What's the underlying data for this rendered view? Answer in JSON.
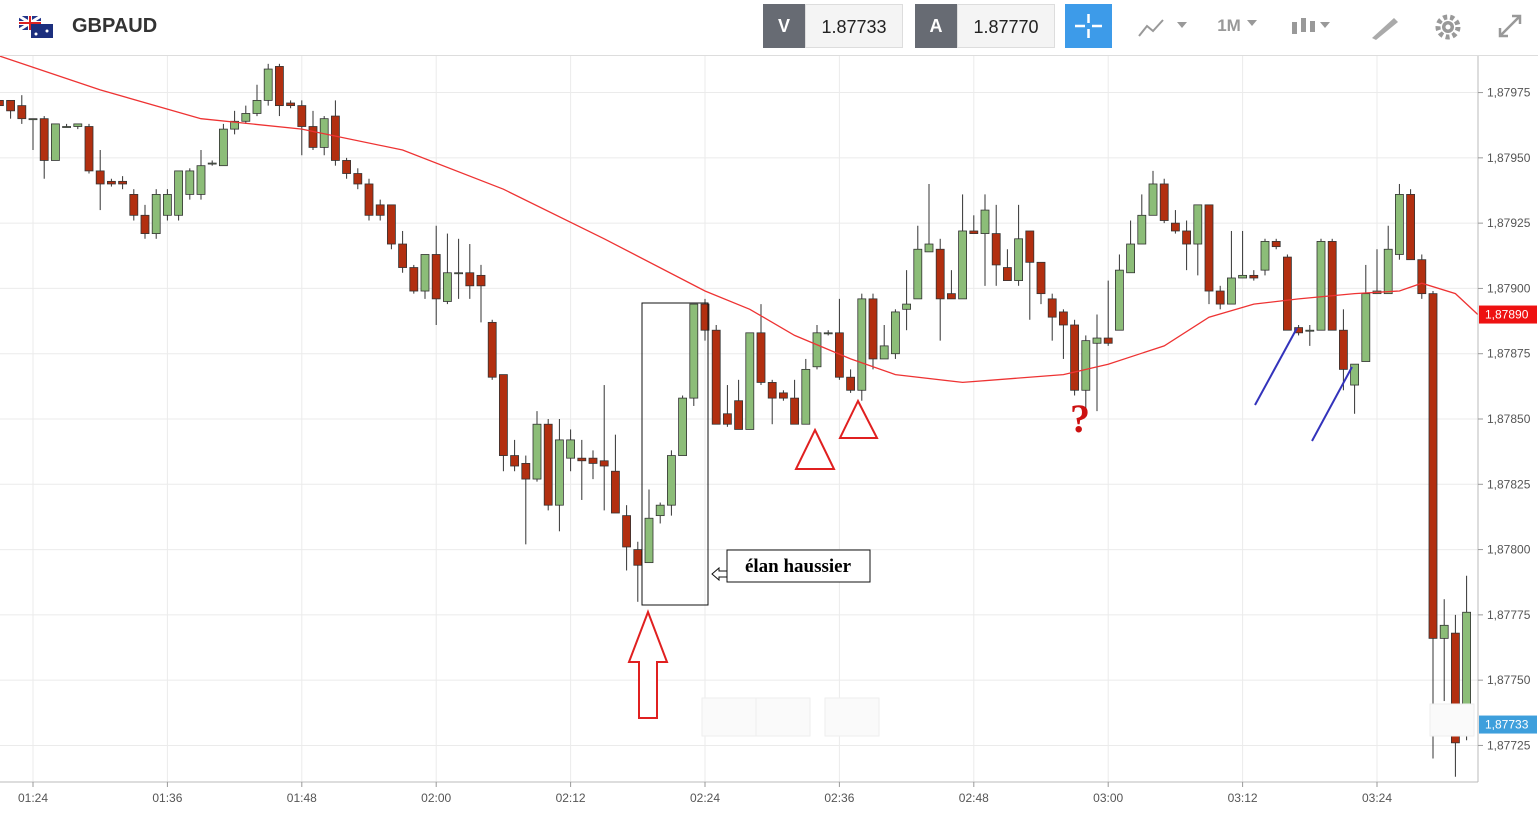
{
  "header": {
    "symbol": "GBPAUD",
    "bid_label": "V",
    "bid": "1.87733",
    "ask_label": "A",
    "ask": "1.87770",
    "timeframe": "1M"
  },
  "chart_data": {
    "type": "candlestick",
    "categories": [
      null,
      null,
      null,
      "01:24",
      null,
      null,
      null,
      null,
      null,
      null,
      null,
      null,
      null,
      null,
      null,
      "01:36",
      null,
      null,
      null,
      null,
      null,
      null,
      null,
      null,
      null,
      null,
      null,
      "01:48",
      null,
      null,
      null,
      null,
      null,
      null,
      null,
      null,
      null,
      null,
      null,
      "02:00",
      null,
      null,
      null,
      null,
      null,
      null,
      null,
      null,
      null,
      null,
      null,
      "02:12",
      null,
      null,
      null,
      null,
      null,
      null,
      null,
      null,
      null,
      null,
      null,
      "02:24",
      null,
      null,
      null,
      null,
      null,
      null,
      null,
      null,
      null,
      null,
      null,
      "02:36",
      null,
      null,
      null,
      null,
      null,
      null,
      null,
      null,
      null,
      null,
      null,
      "02:48",
      null,
      null,
      null,
      null,
      null,
      null,
      null,
      null,
      null,
      null,
      null,
      "03:00",
      null,
      null,
      null,
      null,
      null,
      null,
      null,
      null,
      null,
      null,
      null,
      "03:12",
      null,
      null,
      null,
      null,
      null,
      null,
      null,
      null,
      null,
      null,
      null,
      "03:24",
      null,
      null,
      null,
      null,
      null,
      null,
      null,
      null
    ],
    "open": [
      1.87972,
      1.87972,
      1.8797,
      1.87965,
      1.87965,
      1.87949,
      1.87962,
      1.87962,
      1.87962,
      1.87945,
      1.87941,
      1.87941,
      1.87936,
      1.87928,
      1.87921,
      1.87928,
      1.87928,
      1.87936,
      1.87936,
      1.87948,
      1.87947,
      1.87961,
      1.87964,
      1.87967,
      1.87972,
      1.87985,
      1.87971,
      1.8797,
      1.87962,
      1.87954,
      1.87966,
      1.87949,
      1.87944,
      1.8794,
      1.87932,
      1.87932,
      1.87917,
      1.87908,
      1.87899,
      1.87913,
      1.87895,
      1.87906,
      1.87906,
      1.87905,
      1.87887,
      1.87867,
      1.87836,
      1.87833,
      1.87827,
      1.87848,
      1.87817,
      1.87835,
      1.87835,
      1.87835,
      1.87834,
      1.8783,
      1.87813,
      1.878,
      1.87795,
      1.87813,
      1.87817,
      1.87836,
      1.87858,
      1.87894,
      1.87884,
      1.87852,
      1.87857,
      1.87846,
      1.87883,
      1.87864,
      1.8786,
      1.87858,
      1.87848,
      1.8787,
      1.87883,
      1.87883,
      1.87866,
      1.87861,
      1.87896,
      1.87873,
      1.87875,
      1.87892,
      1.87896,
      1.87914,
      1.87915,
      1.87898,
      1.87896,
      1.87922,
      1.87921,
      1.87921,
      1.87908,
      1.87903,
      1.87922,
      1.8791,
      1.87896,
      1.87891,
      1.87886,
      1.87861,
      1.87879,
      1.87881,
      1.87884,
      1.87906,
      1.87917,
      1.87928,
      1.8794,
      1.87925,
      1.87922,
      1.87917,
      1.87932,
      1.87899,
      1.87894,
      1.87904,
      1.87905,
      1.87907,
      1.87918,
      1.87912,
      1.87885,
      1.87884,
      1.87884,
      1.87918,
      1.87884,
      1.87863,
      1.87872,
      1.87898,
      1.87898,
      1.87913,
      1.87936,
      1.87911,
      1.87898,
      1.87766,
      1.87768,
      1.87736
    ],
    "high": [
      1.87974,
      1.87972,
      1.87974,
      1.87965,
      1.87966,
      1.87963,
      1.87963,
      1.87963,
      1.87963,
      1.87953,
      1.87942,
      1.87943,
      1.87938,
      1.87932,
      1.87938,
      1.87938,
      1.87945,
      1.87946,
      1.87953,
      1.87949,
      1.87963,
      1.87968,
      1.8797,
      1.87978,
      1.87986,
      1.87986,
      1.87972,
      1.87972,
      1.87968,
      1.87966,
      1.87972,
      1.8795,
      1.87946,
      1.87942,
      1.87934,
      1.87932,
      1.87922,
      1.87909,
      1.87913,
      1.87924,
      1.87921,
      1.87919,
      1.87917,
      1.87909,
      1.87888,
      1.87867,
      1.87842,
      1.87836,
      1.87853,
      1.8785,
      1.8785,
      1.87846,
      1.87842,
      1.87838,
      1.87863,
      1.87844,
      1.87817,
      1.87803,
      1.87823,
      1.87818,
      1.87838,
      1.87859,
      1.87894,
      1.87896,
      1.87886,
      1.87863,
      1.87865,
      1.87883,
      1.87894,
      1.87865,
      1.87861,
      1.87865,
      1.87873,
      1.87886,
      1.87884,
      1.87896,
      1.87869,
      1.87898,
      1.87898,
      1.87886,
      1.87892,
      1.87907,
      1.87924,
      1.8794,
      1.87919,
      1.87907,
      1.87936,
      1.87928,
      1.87936,
      1.87932,
      1.87915,
      1.87932,
      1.87922,
      1.8791,
      1.87898,
      1.87892,
      1.87888,
      1.87882,
      1.8789,
      1.87903,
      1.87913,
      1.87926,
      1.87936,
      1.87945,
      1.87942,
      1.8793,
      1.87926,
      1.87932,
      1.87932,
      1.87901,
      1.87922,
      1.87922,
      1.87907,
      1.87919,
      1.87919,
      1.87913,
      1.87886,
      1.87886,
      1.87919,
      1.87919,
      1.87892,
      1.87871,
      1.87909,
      1.87915,
      1.87924,
      1.8794,
      1.87938,
      1.87913,
      1.87899,
      1.87781,
      1.87775,
      1.8779
    ],
    "low": [
      1.87968,
      1.87965,
      1.87963,
      1.87953,
      1.87942,
      1.87949,
      1.87962,
      1.87961,
      1.87944,
      1.8793,
      1.87939,
      1.87938,
      1.87926,
      1.87919,
      1.87919,
      1.87926,
      1.87926,
      1.87934,
      1.87934,
      1.87947,
      1.87947,
      1.87959,
      1.87963,
      1.87966,
      1.8797,
      1.87966,
      1.87969,
      1.87951,
      1.87953,
      1.87951,
      1.87947,
      1.87942,
      1.87938,
      1.87926,
      1.87926,
      1.87915,
      1.87906,
      1.87898,
      1.87896,
      1.87886,
      1.87894,
      1.87896,
      1.87896,
      1.87887,
      1.87865,
      1.8783,
      1.8783,
      1.87802,
      1.87826,
      1.87815,
      1.87807,
      1.8783,
      1.87819,
      1.87827,
      1.87815,
      1.87814,
      1.87792,
      1.8778,
      1.87795,
      1.8781,
      1.87813,
      1.87836,
      1.87855,
      1.8788,
      1.87848,
      1.87847,
      1.87846,
      1.87846,
      1.87863,
      1.87848,
      1.87857,
      1.87848,
      1.87848,
      1.87869,
      1.87882,
      1.87865,
      1.8786,
      1.87857,
      1.87869,
      1.87873,
      1.87873,
      1.87884,
      1.87896,
      1.87914,
      1.8788,
      1.87896,
      1.87896,
      1.87921,
      1.87901,
      1.87901,
      1.87903,
      1.87901,
      1.87888,
      1.87894,
      1.8788,
      1.87873,
      1.87859,
      1.87853,
      1.87853,
      1.87878,
      1.87884,
      1.87906,
      1.87917,
      1.87928,
      1.87925,
      1.87921,
      1.87907,
      1.87905,
      1.87894,
      1.87892,
      1.87894,
      1.87904,
      1.87903,
      1.87905,
      1.87915,
      1.87884,
      1.87882,
      1.87878,
      1.87884,
      1.87884,
      1.87861,
      1.87852,
      1.87872,
      1.87898,
      1.87898,
      1.87911,
      1.87911,
      1.87896,
      1.8772,
      1.87742,
      1.87713,
      1.87727
    ],
    "close": [
      1.8797,
      1.87968,
      1.87965,
      1.87965,
      1.87949,
      1.87963,
      1.87962,
      1.87963,
      1.87945,
      1.8794,
      1.8794,
      1.8794,
      1.87928,
      1.87921,
      1.87936,
      1.87936,
      1.87945,
      1.87945,
      1.87947,
      1.87948,
      1.87961,
      1.87964,
      1.87967,
      1.87972,
      1.87984,
      1.8797,
      1.8797,
      1.87962,
      1.87954,
      1.87965,
      1.87949,
      1.87944,
      1.8794,
      1.87928,
      1.87928,
      1.87917,
      1.87908,
      1.87899,
      1.87913,
      1.87896,
      1.87906,
      1.87906,
      1.87901,
      1.87901,
      1.87866,
      1.87836,
      1.87832,
      1.87827,
      1.87848,
      1.87817,
      1.87842,
      1.87842,
      1.87834,
      1.87833,
      1.87832,
      1.87814,
      1.87801,
      1.87794,
      1.87812,
      1.87817,
      1.87836,
      1.87858,
      1.87894,
      1.87884,
      1.87848,
      1.87848,
      1.87846,
      1.87883,
      1.87864,
      1.87858,
      1.87858,
      1.87848,
      1.87869,
      1.87883,
      1.87883,
      1.87866,
      1.87861,
      1.87896,
      1.87873,
      1.87878,
      1.87891,
      1.87894,
      1.87915,
      1.87917,
      1.87896,
      1.87896,
      1.87922,
      1.87921,
      1.8793,
      1.87909,
      1.87903,
      1.87919,
      1.8791,
      1.87898,
      1.87889,
      1.87886,
      1.87861,
      1.8788,
      1.87881,
      1.87879,
      1.87907,
      1.87917,
      1.87928,
      1.8794,
      1.87926,
      1.87922,
      1.87917,
      1.87932,
      1.87899,
      1.87894,
      1.87904,
      1.87905,
      1.87904,
      1.87918,
      1.87916,
      1.87884,
      1.87883,
      1.87884,
      1.87918,
      1.87884,
      1.87869,
      1.87871,
      1.87898,
      1.87899,
      1.87915,
      1.87936,
      1.87911,
      1.87898,
      1.87766,
      1.87771,
      1.87726,
      1.87776
    ],
    "up_color": "#8cbd78",
    "down_color": "#b22f10",
    "moving_average": {
      "color": "#ee3333",
      "x": [
        0,
        9,
        18,
        27,
        36,
        45,
        54,
        63,
        67,
        71,
        76,
        80,
        86,
        95,
        99,
        104,
        108,
        112,
        116,
        121,
        125,
        127,
        130,
        132
      ],
      "values": [
        1.87989,
        1.87976,
        1.87965,
        1.87961,
        1.87953,
        1.87938,
        1.87919,
        1.87899,
        1.87892,
        1.87882,
        1.87873,
        1.87867,
        1.87864,
        1.87867,
        1.87871,
        1.87878,
        1.87889,
        1.87894,
        1.87896,
        1.87898,
        1.87899,
        1.87902,
        1.87898,
        1.8789
      ]
    },
    "ylim": [
      1.87711,
      1.87989
    ],
    "yticks": [
      {
        "value": 1.87725,
        "label": "1,87725"
      },
      {
        "value": 1.8775,
        "label": "1,87750"
      },
      {
        "value": 1.87775,
        "label": "1,87775"
      },
      {
        "value": 1.878,
        "label": "1,87800"
      },
      {
        "value": 1.87825,
        "label": "1,87825"
      },
      {
        "value": 1.8785,
        "label": "1,87850"
      },
      {
        "value": 1.87875,
        "label": "1,87875"
      },
      {
        "value": 1.879,
        "label": "1,87900"
      },
      {
        "value": 1.87925,
        "label": "1,87925"
      },
      {
        "value": 1.8795,
        "label": "1,87950"
      },
      {
        "value": 1.87975,
        "label": "1,87975"
      }
    ],
    "price_markers": [
      {
        "value": 1.8789,
        "label": "1,87890",
        "color": "#ee1111"
      },
      {
        "value": 1.87733,
        "label": "1,87733",
        "color": "#3e9fdc"
      }
    ],
    "grid": true,
    "annotations": [
      "élan haussier",
      "?"
    ]
  }
}
